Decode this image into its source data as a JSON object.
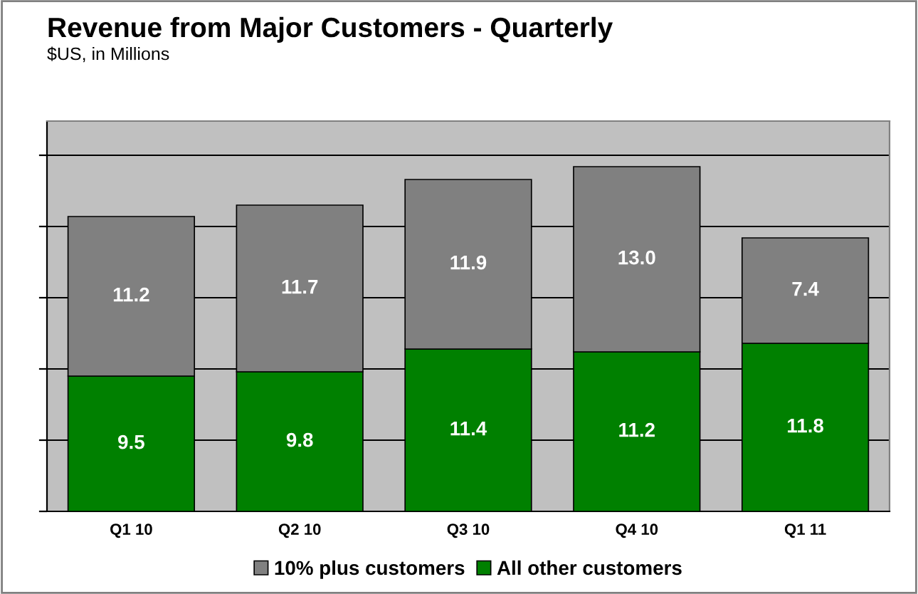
{
  "chart_data": {
    "type": "bar",
    "title": "Revenue from Major Customers - Quarterly",
    "subtitle": "$US, in Millions",
    "categories": [
      "Q1 10",
      "Q2 10",
      "Q3 10",
      "Q4 10",
      "Q1 11"
    ],
    "stacked": true,
    "series": [
      {
        "name": "All other customers",
        "color": "#008000",
        "values": [
          9.5,
          9.8,
          11.4,
          11.2,
          11.8
        ],
        "value_labels": [
          "9.5",
          "9.8",
          "11.4",
          "11.2",
          "11.8"
        ]
      },
      {
        "name": "10% plus customers",
        "color": "#808080",
        "values": [
          11.2,
          11.7,
          11.9,
          13.0,
          7.4
        ],
        "value_labels": [
          "11.2",
          "11.7",
          "11.9",
          "13.0",
          "7.4"
        ]
      }
    ],
    "ylim": [
      0,
      27.4
    ],
    "yticks": [
      {
        "value": 0,
        "label": null
      },
      {
        "value": 5,
        "label": null
      },
      {
        "value": 10,
        "label": null
      },
      {
        "value": 15,
        "label": null
      },
      {
        "value": 20,
        "label": null
      },
      {
        "value": 25,
        "label": null
      }
    ],
    "tick_labels": "x",
    "grid": "y",
    "legend": "bottom"
  }
}
